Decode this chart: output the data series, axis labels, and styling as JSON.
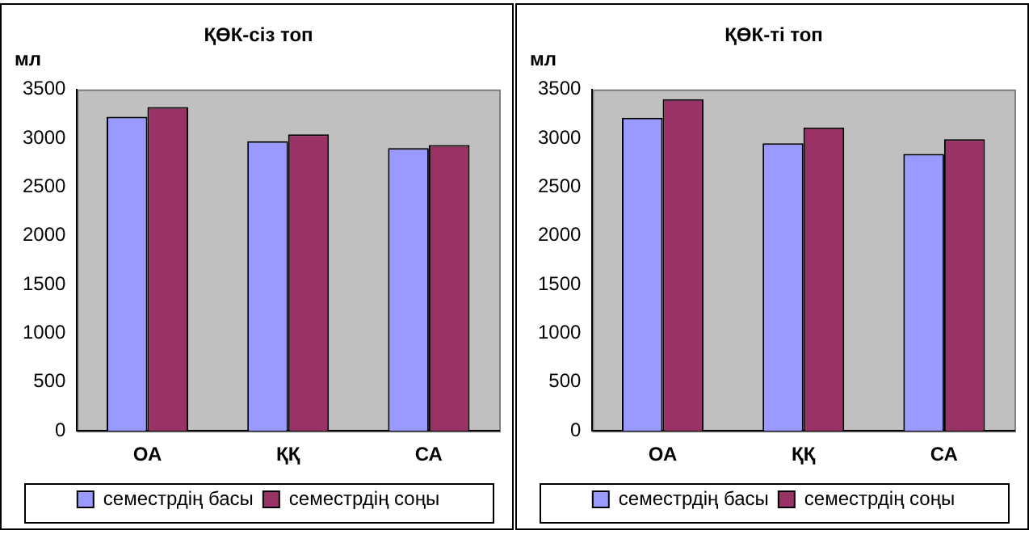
{
  "chart_data": [
    {
      "type": "bar",
      "title": "ҚӨК-сіз топ",
      "ylabel": "мл",
      "categories": [
        "ОА",
        "ҚҚ",
        "СА"
      ],
      "series": [
        {
          "name": "семестрдің басы",
          "color": "#9999ff",
          "values": [
            3220,
            2970,
            2900
          ]
        },
        {
          "name": "семестрдің соңы",
          "color": "#993366",
          "values": [
            3320,
            3040,
            2930
          ]
        }
      ],
      "ylim": [
        0,
        3500
      ],
      "yticks": [
        0,
        500,
        1000,
        1500,
        2000,
        2500,
        3000,
        3500
      ],
      "grid": false,
      "legend": "bottom"
    },
    {
      "type": "bar",
      "title": "ҚӨК-ті топ",
      "ylabel": "мл",
      "categories": [
        "ОА",
        "ҚҚ",
        "СА"
      ],
      "series": [
        {
          "name": "семестрдің басы",
          "color": "#9999ff",
          "values": [
            3210,
            2950,
            2840
          ]
        },
        {
          "name": "семестрдің соңы",
          "color": "#993366",
          "values": [
            3400,
            3110,
            2990
          ]
        }
      ],
      "ylim": [
        0,
        3500
      ],
      "yticks": [
        0,
        500,
        1000,
        1500,
        2000,
        2500,
        3000,
        3500
      ],
      "grid": false,
      "legend": "bottom"
    }
  ]
}
